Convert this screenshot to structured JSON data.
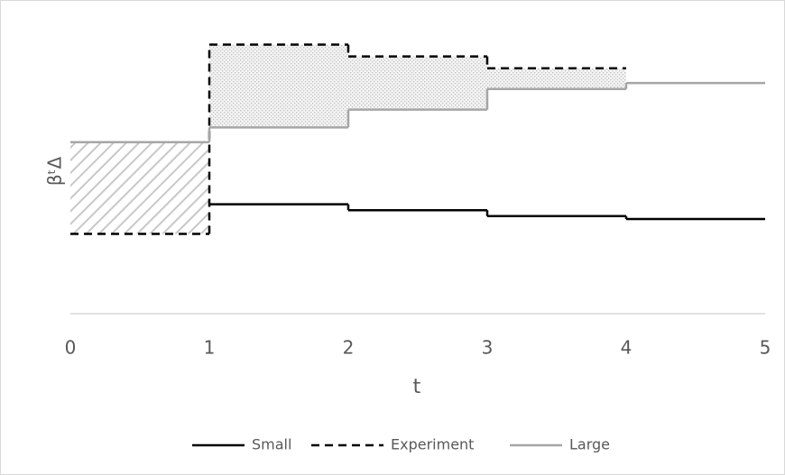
{
  "chart_data": {
    "type": "step",
    "x_label": "t",
    "y_label": "βᵗΔ",
    "x": [
      0,
      1,
      2,
      3,
      4
    ],
    "xlim": [
      0,
      5
    ],
    "xticks": [
      0,
      1,
      2,
      3,
      4,
      5
    ],
    "ylim": [
      0,
      10
    ],
    "series": [
      {
        "name": "Small",
        "color": "#000000",
        "dashed": false,
        "values": [
          null,
          3.7,
          3.5,
          3.3,
          3.2
        ]
      },
      {
        "name": "Experiment",
        "color": "#000000",
        "dashed": true,
        "values": [
          2.7,
          9.1,
          8.7,
          8.3,
          null
        ]
      },
      {
        "name": "Large",
        "color": "#a6a6a6",
        "dashed": false,
        "values": [
          5.8,
          6.3,
          6.9,
          7.6,
          7.8
        ]
      }
    ],
    "legend": "bottom"
  }
}
